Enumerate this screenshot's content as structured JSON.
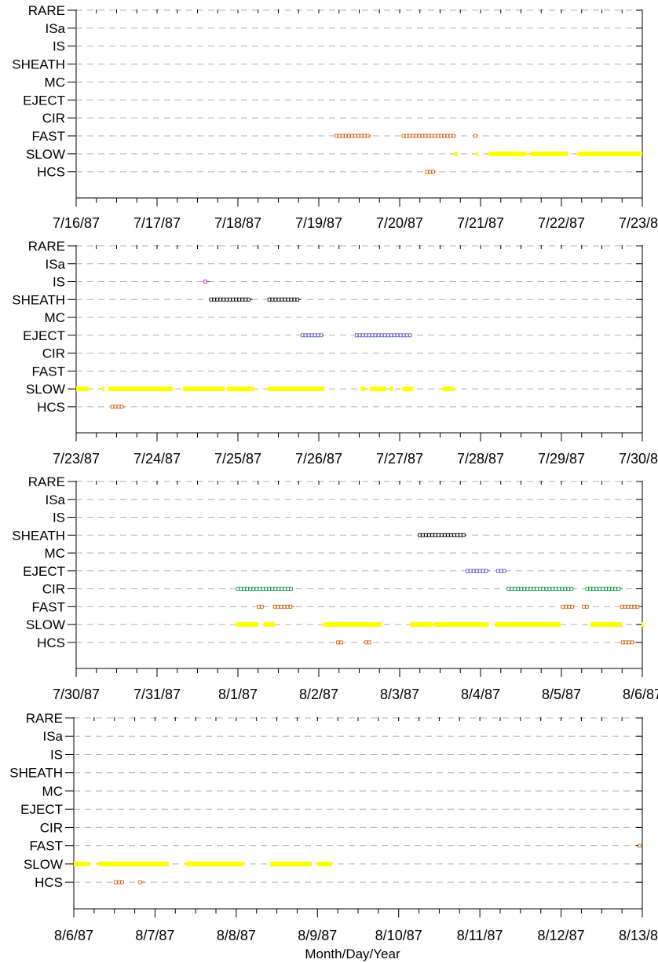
{
  "chart_data": {
    "type": "timeline",
    "categories": [
      "RARE",
      "ISa",
      "IS",
      "SHEATH",
      "MC",
      "EJECT",
      "CIR",
      "FAST",
      "SLOW",
      "HCS"
    ],
    "xlabel": "Month/Day/Year",
    "colors": {
      "RARE": "#888888",
      "ISa": "#888888",
      "IS": "#cc00cc",
      "SHEATH": "#000000",
      "MC": "#888888",
      "EJECT": "#5555cc",
      "CIR": "#009933",
      "FAST": "#cc5500",
      "SLOW": "#ffff00",
      "HCS": "#cc5500"
    },
    "panels": [
      {
        "xlim": [
          "7/16/87",
          "7/23/87"
        ],
        "ticks": [
          "7/16/87",
          "7/17/87",
          "7/18/87",
          "7/19/87",
          "7/20/87",
          "7/21/87",
          "7/22/87",
          "7/23/87"
        ],
        "intervals": {
          "FAST": [
            [
              3.2,
              3.65
            ],
            [
              4.03,
              4.7
            ],
            [
              4.92,
              4.97
            ]
          ],
          "SLOW": [
            [
              4.68,
              4.72
            ],
            [
              4.94,
              4.97
            ],
            [
              5.1,
              5.57
            ],
            [
              5.61,
              6.08
            ],
            [
              6.2,
              7.0
            ]
          ],
          "HCS": [
            [
              4.32,
              4.45
            ]
          ]
        }
      },
      {
        "xlim": [
          "7/23/87",
          "7/30/87"
        ],
        "ticks": [
          "7/23/87",
          "7/24/87",
          "7/25/87",
          "7/26/87",
          "7/27/87",
          "7/28/87",
          "7/29/87",
          "7/30/87"
        ],
        "intervals": {
          "IS": [
            [
              1.58,
              1.65
            ]
          ],
          "SHEATH": [
            [
              1.65,
              2.18
            ],
            [
              2.37,
              2.78
            ]
          ],
          "EJECT": [
            [
              2.78,
              3.07
            ],
            [
              3.45,
              4.15
            ]
          ],
          "SLOW": [
            [
              0.0,
              0.16
            ],
            [
              0.32,
              0.35
            ],
            [
              0.4,
              1.2
            ],
            [
              1.32,
              1.83
            ],
            [
              1.86,
              2.2
            ],
            [
              2.37,
              3.07
            ],
            [
              3.52,
              3.58
            ],
            [
              3.63,
              3.84
            ],
            [
              3.88,
              3.92
            ],
            [
              4.03,
              4.17
            ],
            [
              4.53,
              4.68
            ]
          ],
          "HCS": [
            [
              0.43,
              0.6
            ]
          ]
        }
      },
      {
        "xlim": [
          "7/30/87",
          "8/6/87"
        ],
        "ticks": [
          "7/30/87",
          "7/31/87",
          "8/1/87",
          "8/2/87",
          "8/3/87",
          "8/4/87",
          "8/5/87",
          "8/6/87"
        ],
        "intervals": {
          "SHEATH": [
            [
              4.23,
              4.82
            ]
          ],
          "EJECT": [
            [
              4.82,
              5.12
            ],
            [
              5.2,
              5.32
            ]
          ],
          "CIR": [
            [
              1.98,
              2.68
            ],
            [
              5.33,
              6.16
            ],
            [
              6.3,
              6.76
            ]
          ],
          "FAST": [
            [
              2.24,
              2.32
            ],
            [
              2.44,
              2.7
            ],
            [
              6.0,
              6.16
            ],
            [
              6.26,
              6.34
            ],
            [
              6.73,
              6.98
            ]
          ],
          "SLOW": [
            [
              1.98,
              2.25
            ],
            [
              2.32,
              2.46
            ],
            [
              3.06,
              3.78
            ],
            [
              4.13,
              4.4
            ],
            [
              4.42,
              5.1
            ],
            [
              5.18,
              5.99
            ],
            [
              6.36,
              6.75
            ],
            [
              6.99,
              7.13
            ]
          ],
          "HCS": [
            [
              3.22,
              3.3
            ],
            [
              3.57,
              3.65
            ],
            [
              6.74,
              6.92
            ]
          ]
        }
      },
      {
        "xlim": [
          "8/6/87",
          "8/13/87"
        ],
        "ticks": [
          "8/6/87",
          "8/7/87",
          "8/8/87",
          "8/9/87",
          "8/10/87",
          "8/11/87",
          "8/12/87",
          "8/13/87"
        ],
        "intervals": {
          "FAST": [
            [
              6.95,
              7.15
            ]
          ],
          "SLOW": [
            [
              0.0,
              0.2
            ],
            [
              0.3,
              1.17
            ],
            [
              1.38,
              2.1
            ],
            [
              2.42,
              2.93
            ],
            [
              3.0,
              3.18
            ]
          ],
          "HCS": [
            [
              0.5,
              0.62
            ],
            [
              0.8,
              0.87
            ]
          ]
        }
      }
    ]
  }
}
